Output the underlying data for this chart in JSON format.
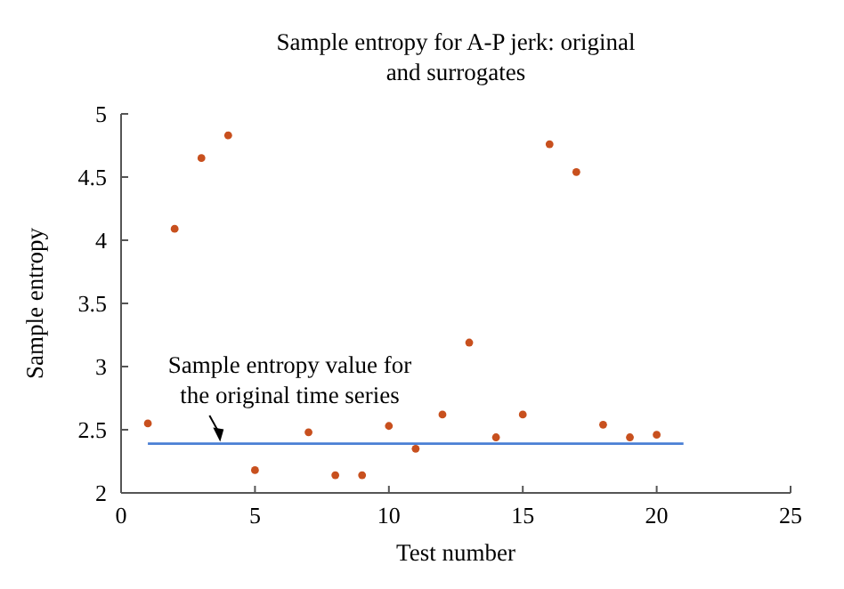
{
  "chart_data": {
    "type": "scatter",
    "title": "Sample entropy for A-P jerk: original and surrogates",
    "xlabel": "Test number",
    "ylabel": "Sample entropy",
    "x": [
      1,
      2,
      3,
      4,
      5,
      6,
      7,
      8,
      9,
      10,
      11,
      12,
      13,
      14,
      15,
      16,
      17,
      18,
      19,
      20
    ],
    "series": [
      {
        "color": "#c8501e",
        "marker": "circle",
        "values": [
          2.55,
          4.09,
          4.65,
          4.83,
          2.18,
          null,
          2.48,
          2.14,
          2.14,
          2.53,
          2.35,
          2.62,
          3.19,
          2.44,
          2.62,
          4.76,
          4.54,
          2.54,
          2.44,
          2.46
        ]
      },
      {
        "type": "line",
        "color": "#4a7fd4",
        "x": [
          1,
          21
        ],
        "values": [
          2.39,
          2.39
        ]
      }
    ],
    "annotations": [
      {
        "text": "Sample entropy value for the original time series",
        "x": 3.7,
        "y": 2.39
      }
    ],
    "xlim": [
      0,
      25
    ],
    "ylim": [
      2,
      5
    ],
    "xticks": [
      0,
      5,
      10,
      15,
      20,
      25
    ],
    "yticks": [
      2,
      2.5,
      3,
      3.5,
      4,
      4.5,
      5
    ],
    "grid": false
  }
}
